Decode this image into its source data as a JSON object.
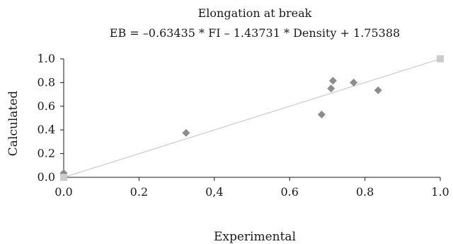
{
  "chart_data": {
    "type": "scatter",
    "title": "Elongation at break",
    "subtitle": "EB = –0.63435 * FI – 1.43731 * Density + 1.75388",
    "xlabel": "Experimental",
    "ylabel": "Calculated",
    "xlim": [
      0.0,
      1.0
    ],
    "ylim": [
      0.0,
      1.0
    ],
    "grid": false,
    "legend": "none",
    "x_ticks": [
      {
        "value": 0.0,
        "label": "0.0"
      },
      {
        "value": 0.2,
        "label": "0.2"
      },
      {
        "value": 0.4,
        "label": "0,4"
      },
      {
        "value": 0.6,
        "label": "0.6"
      },
      {
        "value": 0.8,
        "label": "0.8"
      },
      {
        "value": 1.0,
        "label": "1.0"
      }
    ],
    "y_ticks": [
      {
        "value": 0.0,
        "label": "0.0"
      },
      {
        "value": 0.2,
        "label": "0.2"
      },
      {
        "value": 0.4,
        "label": "0.4"
      },
      {
        "value": 0.6,
        "label": "0.6"
      },
      {
        "value": 0.8,
        "label": "0.8"
      },
      {
        "value": 1.0,
        "label": "1.0"
      }
    ],
    "series": [
      {
        "marker": "diamond",
        "color": "#8c8c8c",
        "points": [
          {
            "x": 0.0,
            "y": 0.035
          },
          {
            "x": 0.325,
            "y": 0.375
          },
          {
            "x": 0.685,
            "y": 0.53
          },
          {
            "x": 0.71,
            "y": 0.75
          },
          {
            "x": 0.715,
            "y": 0.815
          },
          {
            "x": 0.77,
            "y": 0.8
          },
          {
            "x": 0.835,
            "y": 0.735
          }
        ]
      },
      {
        "marker": "square",
        "color": "#cccccc",
        "points": [
          {
            "x": 0.0,
            "y": 0.0
          },
          {
            "x": 1.0,
            "y": 1.0
          }
        ]
      }
    ],
    "reference_line": {
      "from": {
        "x": 0.0,
        "y": 0.0
      },
      "to": {
        "x": 1.0,
        "y": 1.0
      },
      "color": "#cfcfcf"
    },
    "axis_color": "#1a1a1a"
  }
}
